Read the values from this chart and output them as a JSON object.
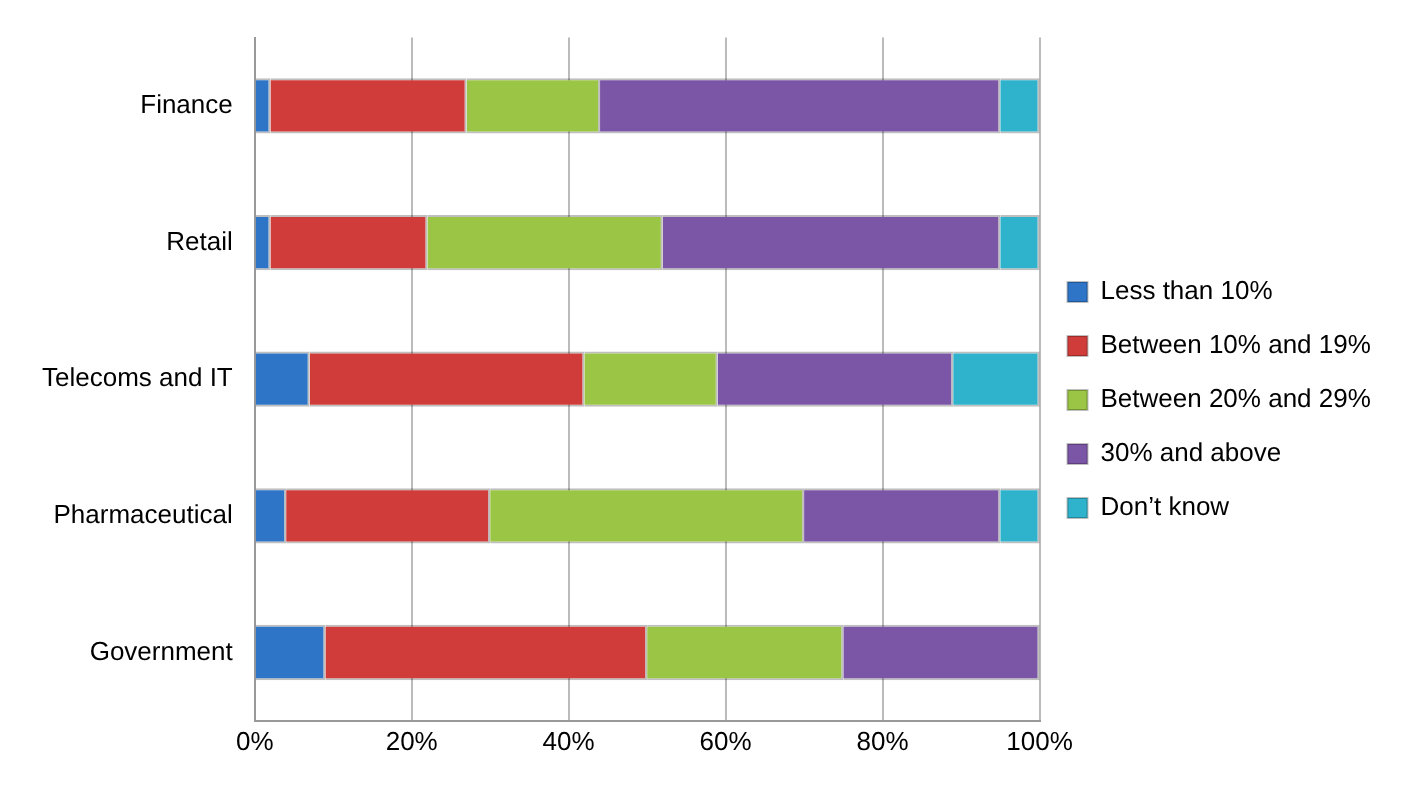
{
  "chart_data": {
    "type": "bar",
    "orientation": "horizontal",
    "stacked": true,
    "categories": [
      "Finance",
      "Retail",
      "Telecoms and IT",
      "Pharmaceutical",
      "Government"
    ],
    "series": [
      {
        "name": "Less than 10%",
        "color": "#2e75c8",
        "values": [
          2,
          2,
          7,
          4,
          9
        ]
      },
      {
        "name": "Between 10% and 19%",
        "color": "#d03c3a",
        "values": [
          25,
          20,
          35,
          26,
          41
        ]
      },
      {
        "name": "Between 20% and 29%",
        "color": "#9bc544",
        "values": [
          17,
          30,
          17,
          40,
          25
        ]
      },
      {
        "name": "30% and above",
        "color": "#7b55a6",
        "values": [
          51,
          43,
          30,
          25,
          25
        ]
      },
      {
        "name": "Don’t know",
        "color": "#2fb2cc",
        "values": [
          5,
          5,
          11,
          5,
          0
        ]
      }
    ],
    "xlim": [
      0,
      100
    ],
    "xticks": [
      {
        "value": 0,
        "label": "0%"
      },
      {
        "value": 20,
        "label": "20%"
      },
      {
        "value": 40,
        "label": "40%"
      },
      {
        "value": 60,
        "label": "60%"
      },
      {
        "value": 80,
        "label": "80%"
      },
      {
        "value": 100,
        "label": "100%"
      }
    ],
    "grid": "x",
    "legend": "right"
  }
}
